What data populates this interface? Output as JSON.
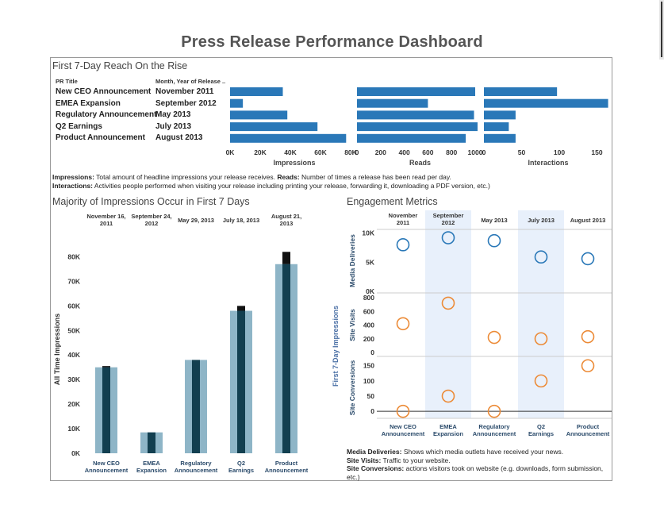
{
  "dashboard": {
    "title": "Press Release Performance Dashboard",
    "reach_title": "First 7-Day Reach On the Rise",
    "majority_title": "Majority of Impressions Occur in First 7 Days",
    "engagement_title": "Engagement Metrics",
    "col_pr_title": "PR Title",
    "col_month": "Month, Year of Release ..",
    "reach_note_1_bold": "Impressions:",
    "reach_note_1": " Total amount of headline impressions your release receives. ",
    "reach_note_2_bold": "Reads:",
    "reach_note_2": " Number of times a release has been read per day.",
    "reach_note_3_bold": "Interactions:",
    "reach_note_3": " Activities people performed when visiting your release including printing your release, forwarding it, downloading a PDF version, etc.)",
    "eng_note_1_bold": "Media Deliveries:",
    "eng_note_1": " Shows which media outlets have received your news.",
    "eng_note_2_bold": "Site Visits:",
    "eng_note_2": " Traffic to your website.",
    "eng_note_3_bold": "Site Conversions:",
    "eng_note_3": " actions visitors took on website (e.g. downloads, form submission, etc.)"
  },
  "colors": {
    "bar_blue": "#2a78b8",
    "light_bar": "#8eb5c7",
    "dark_bar": "#123f50",
    "black_cap": "#111111",
    "circle_blue": "#2a78b8",
    "circle_orange": "#ec8b37",
    "band": "#e8f0fb"
  },
  "chart_data": [
    {
      "type": "bar",
      "orientation": "horizontal",
      "title": "First 7-Day Reach On the Rise",
      "categories": [
        "New CEO Announcement",
        "EMEA Expansion",
        "Regulatory Announcement",
        "Q2 Earnings",
        "Product Announcement"
      ],
      "months": [
        "November 2011",
        "September 2012",
        "May 2013",
        "July 2013",
        "August 2013"
      ],
      "series": [
        {
          "name": "Impressions",
          "values": [
            35000,
            8500,
            38000,
            58000,
            77000
          ],
          "ticks": [
            "0K",
            "20K",
            "40K",
            "60K",
            "80K"
          ],
          "max": 80000
        },
        {
          "name": "Reads",
          "values": [
            1000,
            600,
            990,
            1020,
            920
          ],
          "ticks": [
            "0",
            "200",
            "400",
            "600",
            "800",
            "1000"
          ],
          "max": 1000
        },
        {
          "name": "Interactions",
          "values": [
            97,
            168,
            42,
            33,
            42
          ],
          "ticks": [
            "0",
            "50",
            "100",
            "150"
          ],
          "max": 160
        }
      ]
    },
    {
      "type": "bar",
      "title": "Majority of Impressions Occur in First 7 Days",
      "ylabel": "All Time Impressions",
      "ylim": [
        0,
        85000
      ],
      "yticks": [
        "0K",
        "10K",
        "20K",
        "30K",
        "40K",
        "50K",
        "60K",
        "70K",
        "80K"
      ],
      "date_headers": [
        "November 16, 2011",
        "September 24, 2012",
        "May 29, 2013",
        "July 18, 2013",
        "August 21, 2013"
      ],
      "categories": [
        "New CEO Announcement",
        "EMEA Expansion",
        "Regulatory Announcement",
        "Q2 Earnings",
        "Product Announcement"
      ],
      "all_time": [
        35000,
        8500,
        38000,
        58000,
        77000
      ],
      "first_7_day": [
        35500,
        8500,
        38000,
        60000,
        82000
      ]
    },
    {
      "type": "scatter",
      "title": "Engagement Metrics",
      "ylabel": "First 7-Day Impressions",
      "column_headers": [
        "November 2011",
        "September 2012",
        "May 2013",
        "July 2013",
        "August 2013"
      ],
      "categories": [
        "New CEO Announcement",
        "EMEA Expansion",
        "Regulatory Announcement",
        "Q2 Earnings",
        "Product Announcement"
      ],
      "rows": [
        {
          "name": "Media Deliveries",
          "values": [
            8000,
            9200,
            8700,
            5900,
            5600
          ],
          "ylim": [
            0,
            10500
          ],
          "ticks": [
            "0K",
            "5K",
            "10K"
          ],
          "tick_values": [
            0,
            5000,
            10000
          ]
        },
        {
          "name": "Site Visits",
          "values": [
            420,
            720,
            220,
            200,
            230
          ],
          "ylim": [
            0,
            800
          ],
          "ticks": [
            "0",
            "200",
            "400",
            "600",
            "800"
          ],
          "tick_values": [
            0,
            200,
            400,
            600,
            800
          ]
        },
        {
          "name": "Site Conversions",
          "values": [
            0,
            50,
            0,
            100,
            150
          ],
          "ylim": [
            -10,
            165
          ],
          "ticks": [
            "0",
            "50",
            "100",
            "150"
          ],
          "tick_values": [
            0,
            50,
            100,
            150
          ]
        }
      ]
    }
  ]
}
